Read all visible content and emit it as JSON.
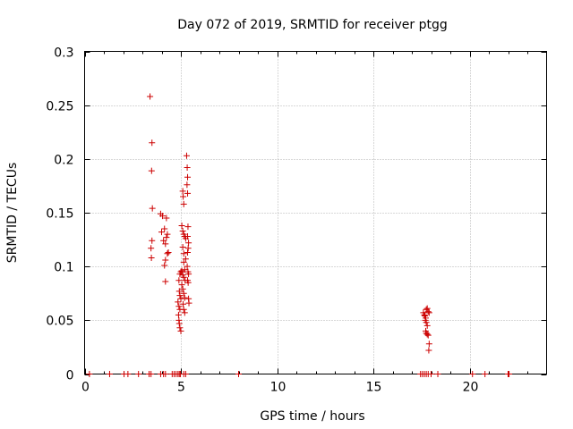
{
  "chart_data": {
    "type": "scatter",
    "title": "Day 072 of 2019, SRMTID for receiver ptgg",
    "xlabel": "GPS time / hours",
    "ylabel": "SRMTID / TECUs",
    "xlim": [
      0,
      24
    ],
    "ylim": [
      0,
      0.3
    ],
    "xticks": [
      0,
      5,
      10,
      15,
      20
    ],
    "yticks": [
      0,
      0.05,
      0.1,
      0.15,
      0.2,
      0.25,
      0.3
    ],
    "xtick_labels": [
      "0",
      "5",
      "10",
      "15",
      "20"
    ],
    "ytick_labels": [
      "0",
      "0.05",
      "0.1",
      "0.15",
      "0.2",
      "0.25",
      "0.3"
    ],
    "grid": true,
    "marker": "+",
    "series": [
      {
        "name": "SRMTID",
        "color": "#cc0000",
        "points": [
          [
            0.25,
            0
          ],
          [
            1.3,
            0
          ],
          [
            2.05,
            0
          ],
          [
            2.25,
            0
          ],
          [
            2.8,
            0
          ],
          [
            3.35,
            0
          ],
          [
            3.45,
            0
          ],
          [
            3.95,
            0
          ],
          [
            4.1,
            0
          ],
          [
            4.2,
            0
          ],
          [
            4.55,
            0
          ],
          [
            4.65,
            0
          ],
          [
            4.75,
            0
          ],
          [
            4.85,
            0
          ],
          [
            4.92,
            0
          ],
          [
            4.98,
            0
          ],
          [
            5.15,
            0
          ],
          [
            5.25,
            0
          ],
          [
            8.0,
            0
          ],
          [
            17.45,
            0
          ],
          [
            17.55,
            0
          ],
          [
            17.65,
            0
          ],
          [
            17.75,
            0
          ],
          [
            17.85,
            0
          ],
          [
            18.0,
            0
          ],
          [
            18.35,
            0
          ],
          [
            20.15,
            0
          ],
          [
            20.8,
            0
          ],
          [
            22.0,
            0
          ],
          [
            22.05,
            0
          ],
          [
            3.4,
            0.258
          ],
          [
            3.5,
            0.215
          ],
          [
            3.48,
            0.189
          ],
          [
            3.52,
            0.154
          ],
          [
            3.5,
            0.124
          ],
          [
            3.45,
            0.117
          ],
          [
            3.47,
            0.108
          ],
          [
            3.95,
            0.149
          ],
          [
            4.05,
            0.147
          ],
          [
            4.0,
            0.132
          ],
          [
            4.1,
            0.124
          ],
          [
            4.25,
            0.145
          ],
          [
            4.15,
            0.135
          ],
          [
            4.3,
            0.13
          ],
          [
            4.25,
            0.127
          ],
          [
            4.2,
            0.121
          ],
          [
            4.35,
            0.113
          ],
          [
            4.3,
            0.112
          ],
          [
            4.2,
            0.106
          ],
          [
            4.15,
            0.101
          ],
          [
            4.2,
            0.086
          ],
          [
            4.9,
            0.087
          ],
          [
            4.95,
            0.093
          ],
          [
            5.0,
            0.095
          ],
          [
            5.05,
            0.096
          ],
          [
            4.92,
            0.077
          ],
          [
            4.95,
            0.073
          ],
          [
            5.0,
            0.07
          ],
          [
            4.85,
            0.067
          ],
          [
            4.9,
            0.063
          ],
          [
            4.95,
            0.06
          ],
          [
            4.88,
            0.055
          ],
          [
            4.9,
            0.05
          ],
          [
            4.92,
            0.047
          ],
          [
            4.95,
            0.043
          ],
          [
            5.0,
            0.04
          ],
          [
            5.1,
            0.17
          ],
          [
            5.12,
            0.165
          ],
          [
            5.15,
            0.158
          ],
          [
            5.05,
            0.138
          ],
          [
            5.1,
            0.133
          ],
          [
            5.15,
            0.13
          ],
          [
            5.2,
            0.128
          ],
          [
            5.25,
            0.126
          ],
          [
            5.1,
            0.118
          ],
          [
            5.15,
            0.112
          ],
          [
            5.25,
            0.107
          ],
          [
            5.15,
            0.104
          ],
          [
            5.2,
            0.097
          ],
          [
            5.1,
            0.092
          ],
          [
            5.15,
            0.09
          ],
          [
            5.22,
            0.087
          ],
          [
            5.05,
            0.083
          ],
          [
            5.1,
            0.079
          ],
          [
            5.15,
            0.075
          ],
          [
            5.2,
            0.071
          ],
          [
            5.12,
            0.065
          ],
          [
            5.15,
            0.06
          ],
          [
            5.2,
            0.057
          ],
          [
            5.3,
            0.203
          ],
          [
            5.33,
            0.192
          ],
          [
            5.35,
            0.183
          ],
          [
            5.32,
            0.176
          ],
          [
            5.35,
            0.168
          ],
          [
            5.37,
            0.137
          ],
          [
            5.35,
            0.128
          ],
          [
            5.4,
            0.122
          ],
          [
            5.38,
            0.117
          ],
          [
            5.35,
            0.113
          ],
          [
            5.33,
            0.1
          ],
          [
            5.37,
            0.095
          ],
          [
            5.4,
            0.093
          ],
          [
            5.35,
            0.087
          ],
          [
            5.38,
            0.085
          ],
          [
            5.4,
            0.07
          ],
          [
            5.42,
            0.066
          ],
          [
            17.6,
            0.057
          ],
          [
            17.65,
            0.055
          ],
          [
            17.68,
            0.054
          ],
          [
            17.72,
            0.052
          ],
          [
            17.75,
            0.06
          ],
          [
            17.8,
            0.061
          ],
          [
            17.85,
            0.058
          ],
          [
            17.7,
            0.05
          ],
          [
            17.75,
            0.048
          ],
          [
            17.8,
            0.045
          ],
          [
            17.72,
            0.04
          ],
          [
            17.75,
            0.038
          ],
          [
            17.8,
            0.037
          ],
          [
            17.85,
            0.036
          ],
          [
            17.9,
            0.028
          ],
          [
            17.88,
            0.022
          ],
          [
            17.9,
            0.057
          ]
        ]
      }
    ]
  }
}
